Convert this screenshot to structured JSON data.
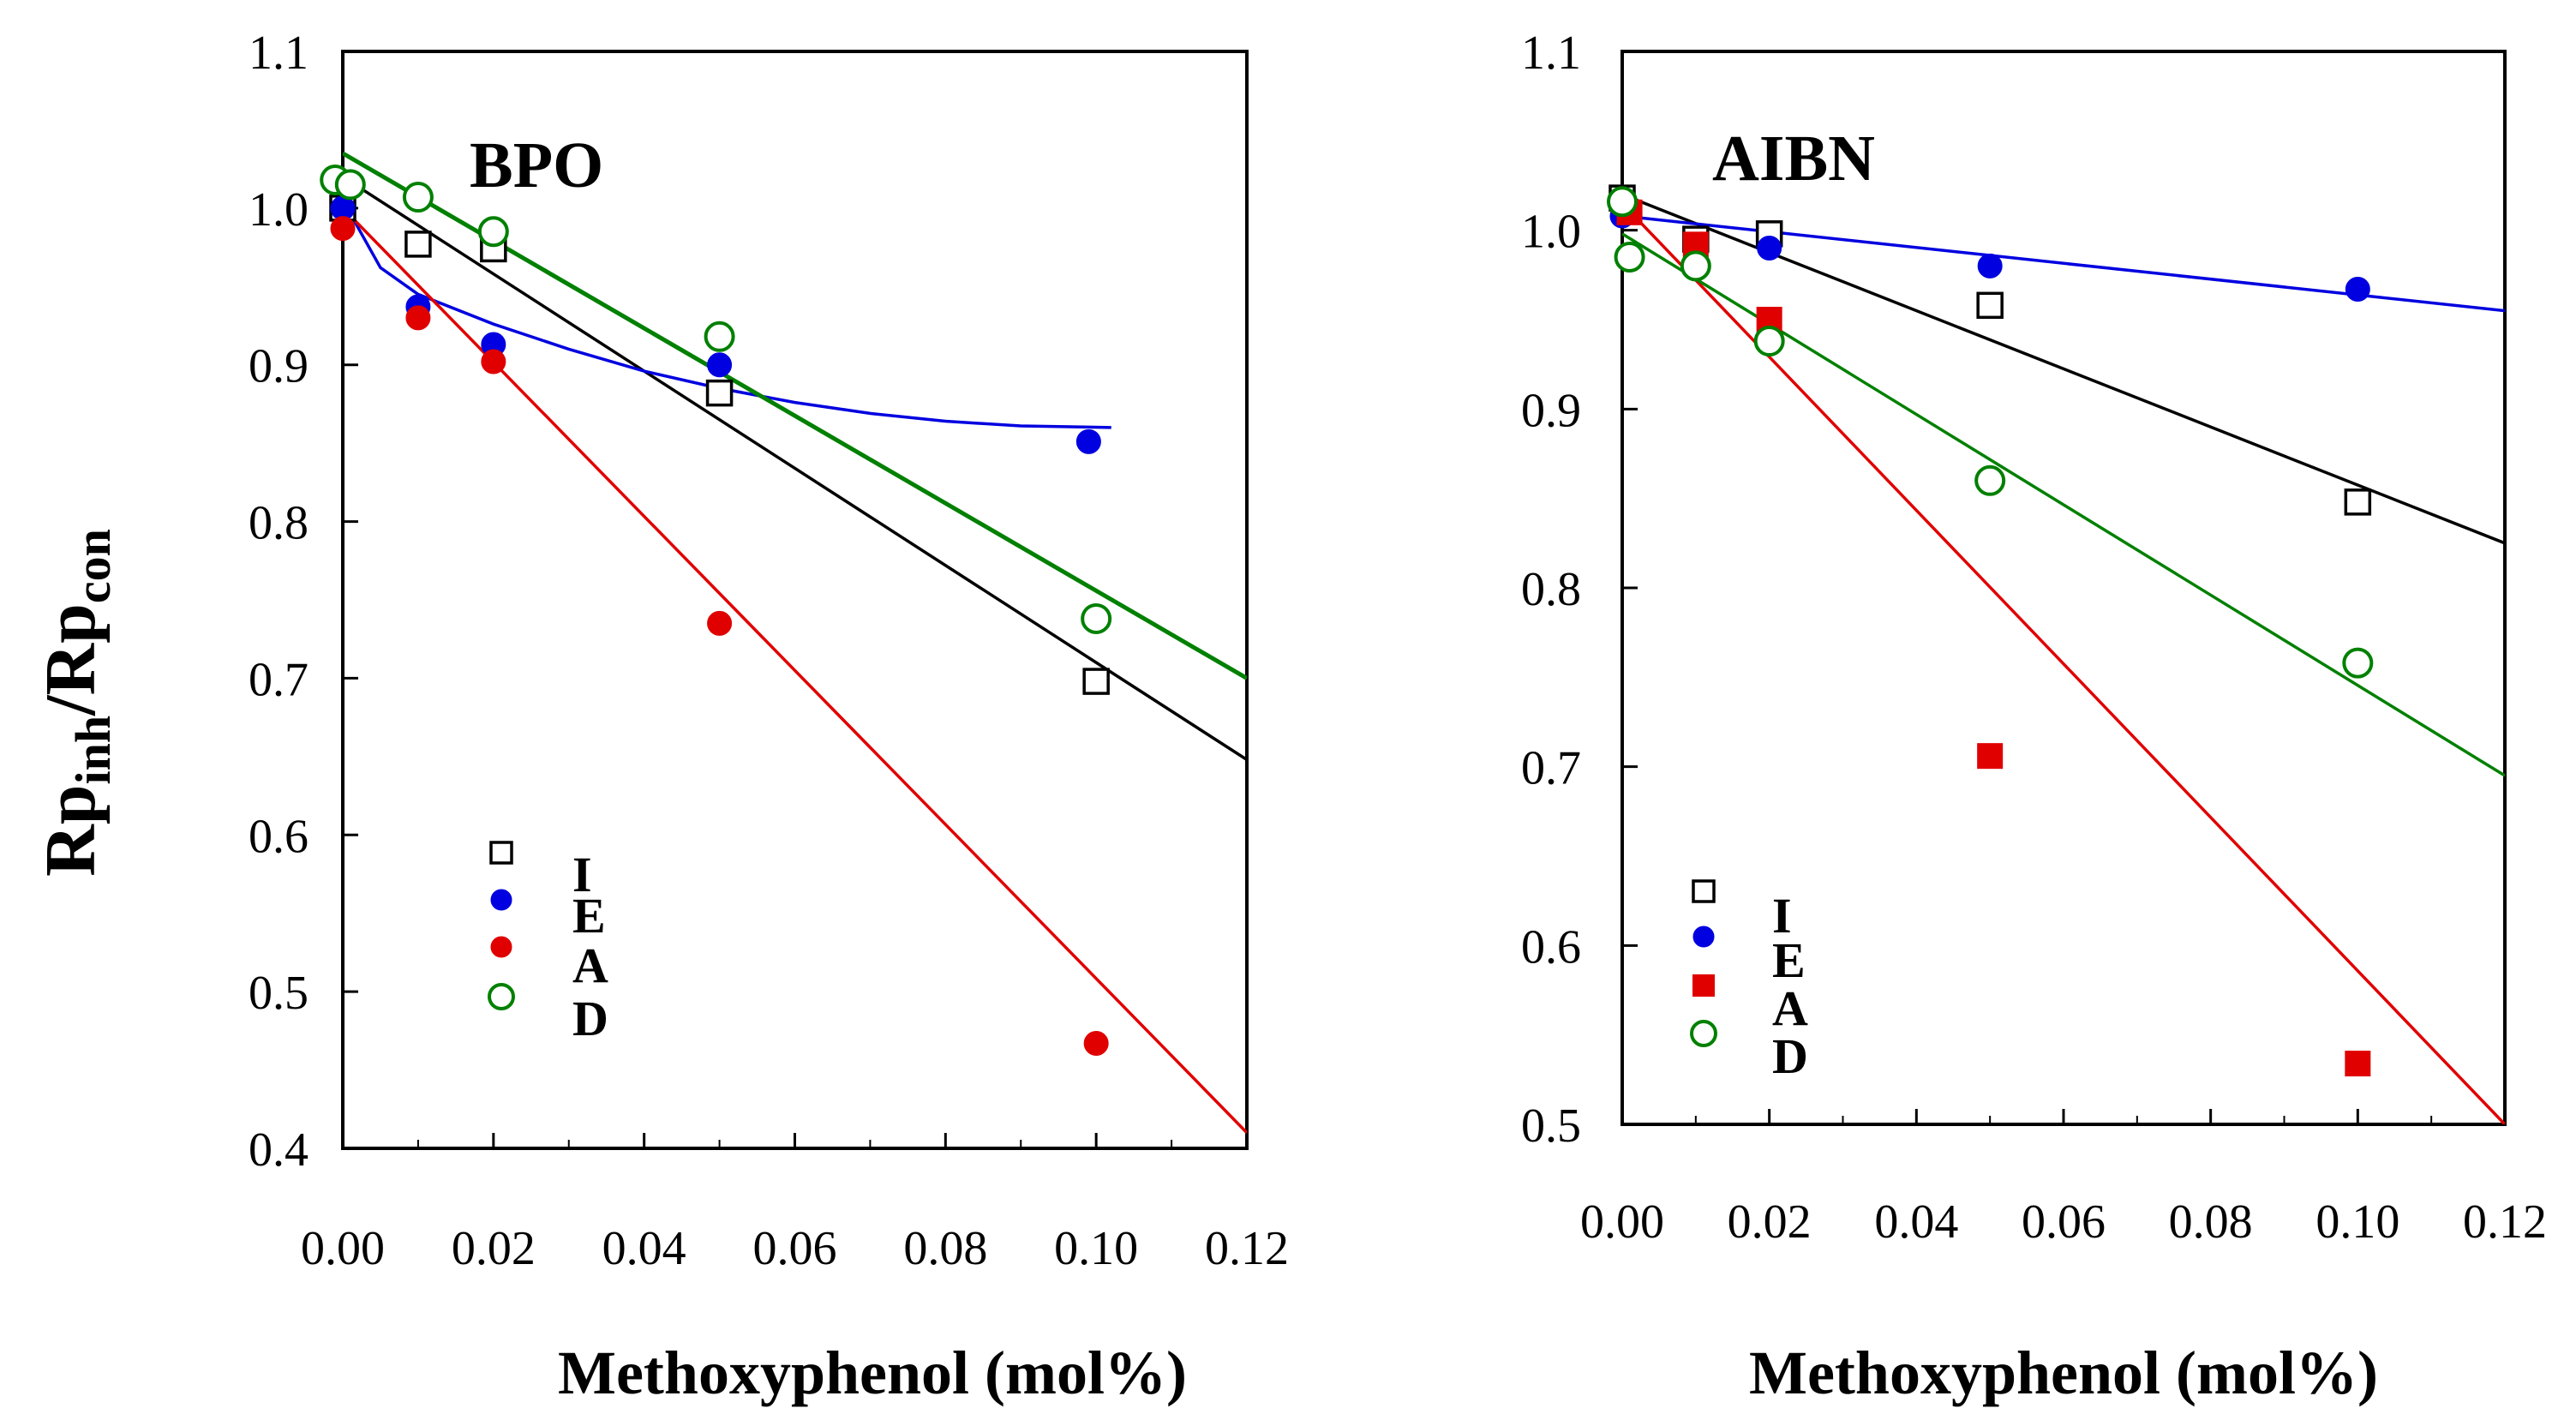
{
  "figure": {
    "y_axis_title_main": "Rp",
    "y_axis_title_sub1": "inh",
    "y_axis_slash": "/Rp",
    "y_axis_title_sub2": "con"
  },
  "colors": {
    "black": "#000000",
    "blue": "#0000e0",
    "red": "#e00000",
    "green": "#008000"
  },
  "chart_data": [
    {
      "type": "scatter",
      "title": "BPO",
      "xlabel": "Methoxyphenol (mol%)",
      "ylabel": "Rpinh/Rpcon",
      "xlim": [
        0.0,
        0.12
      ],
      "ylim": [
        0.4,
        1.1
      ],
      "x_ticks": [
        "0.00",
        "0.02",
        "0.04",
        "0.06",
        "0.08",
        "0.10",
        "0.12"
      ],
      "y_ticks": [
        "0.4",
        "0.5",
        "0.6",
        "0.7",
        "0.8",
        "0.9",
        "1.0",
        "1.1"
      ],
      "legend": [
        "I",
        "E",
        "A",
        "D"
      ],
      "series": [
        {
          "name": "I",
          "marker": "open-square",
          "color": "#000000",
          "x": [
            0.0,
            0.01,
            0.02,
            0.05,
            0.1
          ],
          "y": [
            1.0,
            0.977,
            0.974,
            0.882,
            0.698
          ],
          "fit": {
            "kind": "line",
            "x": [
              0.0,
              0.12
            ],
            "y": [
              1.02,
              0.648
            ]
          }
        },
        {
          "name": "E",
          "marker": "filled-circle",
          "color": "#0000e0",
          "x": [
            0.0,
            0.01,
            0.02,
            0.05,
            0.099
          ],
          "y": [
            1.0,
            0.937,
            0.913,
            0.9,
            0.851
          ],
          "fit": {
            "kind": "curve",
            "x": [
              0.0,
              0.005,
              0.01,
              0.02,
              0.03,
              0.04,
              0.05,
              0.06,
              0.07,
              0.08,
              0.09,
              0.102
            ],
            "y": [
              1.005,
              0.962,
              0.945,
              0.926,
              0.91,
              0.896,
              0.885,
              0.876,
              0.869,
              0.864,
              0.861,
              0.86
            ]
          }
        },
        {
          "name": "A",
          "marker": "filled-circle",
          "color": "#e00000",
          "x": [
            0.0,
            0.01,
            0.02,
            0.05,
            0.1
          ],
          "y": [
            0.987,
            0.93,
            0.902,
            0.735,
            0.467
          ],
          "fit": {
            "kind": "line",
            "x": [
              0.0,
              0.12
            ],
            "y": [
              1.0,
              0.41
            ]
          }
        },
        {
          "name": "D",
          "marker": "open-circle",
          "color": "#008000",
          "x": [
            -0.001,
            0.001,
            0.01,
            0.02,
            0.05,
            0.1
          ],
          "y": [
            1.018,
            1.015,
            1.007,
            0.985,
            0.918,
            0.738
          ],
          "fit": {
            "kind": "line",
            "x": [
              0.0,
              0.12
            ],
            "y": [
              1.035,
              0.7
            ]
          }
        }
      ]
    },
    {
      "type": "scatter",
      "title": "AIBN",
      "xlabel": "Methoxyphenol (mol%)",
      "ylabel": "",
      "xlim": [
        0.0,
        0.12
      ],
      "ylim": [
        0.5,
        1.1
      ],
      "x_ticks": [
        "0.00",
        "0.02",
        "0.04",
        "0.06",
        "0.08",
        "0.10",
        "0.12"
      ],
      "y_ticks": [
        "0.5",
        "0.6",
        "0.7",
        "0.8",
        "0.9",
        "1.0",
        "1.1"
      ],
      "legend": [
        "I",
        "E",
        "A",
        "D"
      ],
      "series": [
        {
          "name": "I",
          "marker": "open-square",
          "color": "#000000",
          "x": [
            0.0,
            0.01,
            0.02,
            0.05,
            0.1
          ],
          "y": [
            1.018,
            0.995,
            0.998,
            0.958,
            0.848
          ],
          "fit": {
            "kind": "line",
            "x": [
              0.0,
              0.12
            ],
            "y": [
              1.02,
              0.825
            ]
          }
        },
        {
          "name": "E",
          "marker": "filled-circle",
          "color": "#0000e0",
          "x": [
            0.0,
            0.02,
            0.05,
            0.1
          ],
          "y": [
            1.008,
            0.99,
            0.98,
            0.967
          ],
          "fit": {
            "kind": "line",
            "x": [
              0.0,
              0.12
            ],
            "y": [
              1.008,
              0.955
            ]
          }
        },
        {
          "name": "A",
          "marker": "filled-square",
          "color": "#e00000",
          "x": [
            0.001,
            0.01,
            0.02,
            0.05,
            0.1
          ],
          "y": [
            1.01,
            0.992,
            0.95,
            0.706,
            0.534
          ],
          "fit": {
            "kind": "line",
            "x": [
              0.0,
              0.12
            ],
            "y": [
              1.015,
              0.5
            ]
          }
        },
        {
          "name": "D",
          "marker": "open-circle",
          "color": "#008000",
          "x": [
            0.0,
            0.001,
            0.01,
            0.02,
            0.05,
            0.1
          ],
          "y": [
            1.016,
            0.985,
            0.98,
            0.938,
            0.86,
            0.758
          ],
          "fit": {
            "kind": "line",
            "x": [
              0.0,
              0.12
            ],
            "y": [
              0.998,
              0.695
            ]
          }
        }
      ]
    }
  ]
}
